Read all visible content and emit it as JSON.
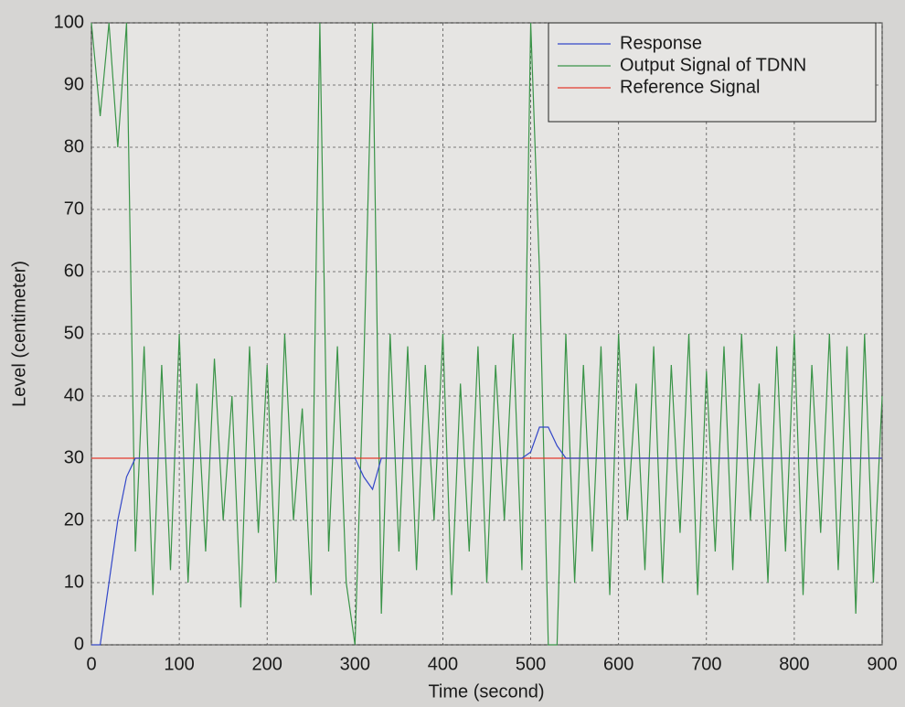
{
  "chart_data": {
    "type": "line",
    "xlabel": "Time (second)",
    "ylabel": "Level (centimeter)",
    "x": [
      0,
      10,
      20,
      30,
      40,
      50,
      60,
      70,
      80,
      90,
      100,
      110,
      120,
      130,
      140,
      150,
      160,
      170,
      180,
      190,
      200,
      210,
      220,
      230,
      240,
      250,
      260,
      270,
      280,
      290,
      300,
      310,
      320,
      330,
      340,
      350,
      360,
      370,
      380,
      390,
      400,
      410,
      420,
      430,
      440,
      450,
      460,
      470,
      480,
      490,
      500,
      510,
      520,
      530,
      540,
      550,
      560,
      570,
      580,
      590,
      600,
      610,
      620,
      630,
      640,
      650,
      660,
      670,
      680,
      690,
      700,
      710,
      720,
      730,
      740,
      750,
      760,
      770,
      780,
      790,
      800,
      810,
      820,
      830,
      840,
      850,
      860,
      870,
      880,
      890,
      900
    ],
    "series": [
      {
        "name": "Response",
        "color": "#3347c8",
        "values": [
          0,
          0,
          10,
          20,
          27,
          30,
          30,
          30,
          30,
          30,
          30,
          30,
          30,
          30,
          30,
          30,
          30,
          30,
          30,
          30,
          30,
          30,
          30,
          30,
          30,
          30,
          30,
          30,
          30,
          30,
          30,
          27,
          25,
          30,
          30,
          30,
          30,
          30,
          30,
          30,
          30,
          30,
          30,
          30,
          30,
          30,
          30,
          30,
          30,
          30,
          31,
          35,
          35,
          32,
          30,
          30,
          30,
          30,
          30,
          30,
          30,
          30,
          30,
          30,
          30,
          30,
          30,
          30,
          30,
          30,
          30,
          30,
          30,
          30,
          30,
          30,
          30,
          30,
          30,
          30,
          30,
          30,
          30,
          30,
          30,
          30,
          30,
          30,
          30,
          30,
          30
        ]
      },
      {
        "name": "Output Signal of TDNN",
        "color": "#3a9448",
        "values": [
          100,
          85,
          100,
          80,
          100,
          15,
          48,
          8,
          45,
          12,
          50,
          10,
          42,
          15,
          46,
          20,
          40,
          6,
          48,
          18,
          45,
          10,
          50,
          20,
          38,
          8,
          100,
          15,
          48,
          10,
          0,
          45,
          100,
          5,
          50,
          15,
          48,
          12,
          45,
          20,
          50,
          8,
          42,
          15,
          48,
          10,
          45,
          20,
          50,
          12,
          100,
          60,
          0,
          0,
          50,
          10,
          45,
          15,
          48,
          8,
          50,
          20,
          42,
          12,
          48,
          10,
          45,
          18,
          50,
          8,
          44,
          15,
          48,
          12,
          50,
          20,
          42,
          10,
          48,
          15,
          50,
          8,
          45,
          18,
          50,
          12,
          48,
          5,
          50,
          10,
          40
        ]
      },
      {
        "name": "Reference Signal",
        "color": "#e23a2e",
        "values": [
          30,
          30,
          30,
          30,
          30,
          30,
          30,
          30,
          30,
          30,
          30,
          30,
          30,
          30,
          30,
          30,
          30,
          30,
          30,
          30,
          30,
          30,
          30,
          30,
          30,
          30,
          30,
          30,
          30,
          30,
          30,
          30,
          30,
          30,
          30,
          30,
          30,
          30,
          30,
          30,
          30,
          30,
          30,
          30,
          30,
          30,
          30,
          30,
          30,
          30,
          30,
          30,
          30,
          30,
          30,
          30,
          30,
          30,
          30,
          30,
          30,
          30,
          30,
          30,
          30,
          30,
          30,
          30,
          30,
          30,
          30,
          30,
          30,
          30,
          30,
          30,
          30,
          30,
          30,
          30,
          30,
          30,
          30,
          30,
          30,
          30,
          30,
          30,
          30,
          30,
          30
        ]
      }
    ],
    "xlim": [
      0,
      900
    ],
    "ylim": [
      0,
      100
    ],
    "xticks": [
      0,
      100,
      200,
      300,
      400,
      500,
      600,
      700,
      800,
      900
    ],
    "yticks": [
      0,
      10,
      20,
      30,
      40,
      50,
      60,
      70,
      80,
      90,
      100
    ],
    "grid": true,
    "legend": "upper right"
  }
}
